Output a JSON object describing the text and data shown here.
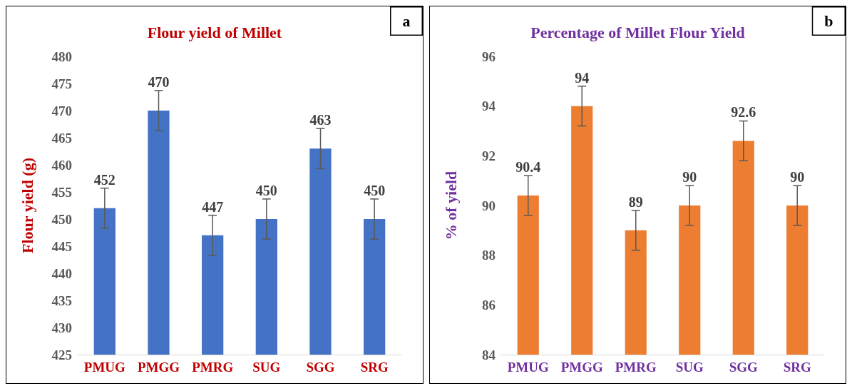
{
  "chart_data": [
    {
      "type": "bar",
      "title": "Flour yield of Millet",
      "ylabel": "Flour yield (g)",
      "categories": [
        "PMUG",
        "PMGG",
        "PMRG",
        "SUG",
        "SGG",
        "SRG"
      ],
      "values": [
        452,
        470,
        447,
        450,
        463,
        450
      ],
      "errors": [
        3.7,
        3.7,
        3.7,
        3.7,
        3.7,
        3.7
      ],
      "color": "#4472c4",
      "ylim": [
        425,
        480
      ],
      "yticks": [
        425,
        430,
        435,
        440,
        445,
        450,
        455,
        460,
        465,
        470,
        475,
        480
      ],
      "data_labels": true,
      "grid": false,
      "annotations": [
        "a"
      ]
    },
    {
      "type": "bar",
      "title": "Percentage of Millet Flour Yield",
      "ylabel": "% of yield",
      "categories": [
        "PMUG",
        "PMGG",
        "PMRG",
        "SUG",
        "SGG",
        "SRG"
      ],
      "values": [
        90.4,
        94,
        89,
        90,
        92.6,
        90
      ],
      "errors": [
        0.8,
        0.8,
        0.8,
        0.8,
        0.8,
        0.8
      ],
      "color": "#ed7d31",
      "ylim": [
        84,
        96
      ],
      "yticks": [
        84,
        86,
        88,
        90,
        92,
        94,
        96
      ],
      "data_labels": true,
      "grid": false,
      "annotations": [
        "b"
      ]
    }
  ]
}
